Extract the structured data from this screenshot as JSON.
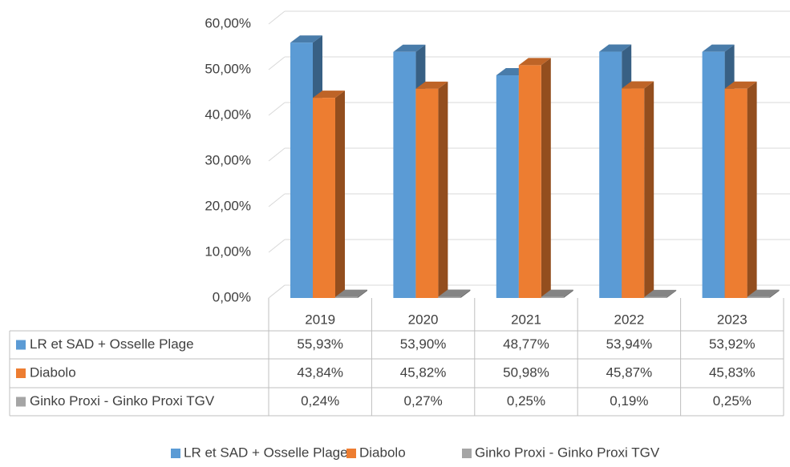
{
  "chart_data": {
    "type": "bar3d",
    "categories": [
      "2019",
      "2020",
      "2021",
      "2022",
      "2023"
    ],
    "series": [
      {
        "name": "LR et SAD + Osselle Plage",
        "color": "#5b9bd5",
        "values": [
          55.93,
          53.9,
          48.77,
          53.94,
          53.92
        ],
        "value_labels": [
          "55,93%",
          "53,90%",
          "48,77%",
          "53,94%",
          "53,92%"
        ]
      },
      {
        "name": "Diabolo",
        "color": "#ed7d31",
        "values": [
          43.84,
          45.82,
          50.98,
          45.87,
          45.83
        ],
        "value_labels": [
          "43,84%",
          "45,82%",
          "50,98%",
          "45,87%",
          "45,83%"
        ]
      },
      {
        "name": "Ginko Proxi - Ginko Proxi TGV",
        "color": "#a5a5a5",
        "values": [
          0.24,
          0.27,
          0.25,
          0.19,
          0.25
        ],
        "value_labels": [
          "0,24%",
          "0,27%",
          "0,25%",
          "0,19%",
          "0,25%"
        ]
      }
    ],
    "ylim": [
      0,
      60
    ],
    "yticks": [
      {
        "value": 0,
        "label": "0,00%"
      },
      {
        "value": 10,
        "label": "10,00%"
      },
      {
        "value": 20,
        "label": "20,00%"
      },
      {
        "value": 30,
        "label": "30,00%"
      },
      {
        "value": 40,
        "label": "40,00%"
      },
      {
        "value": 50,
        "label": "50,00%"
      },
      {
        "value": 60,
        "label": "60,00%"
      }
    ],
    "grid": true,
    "legend": "bottom"
  }
}
